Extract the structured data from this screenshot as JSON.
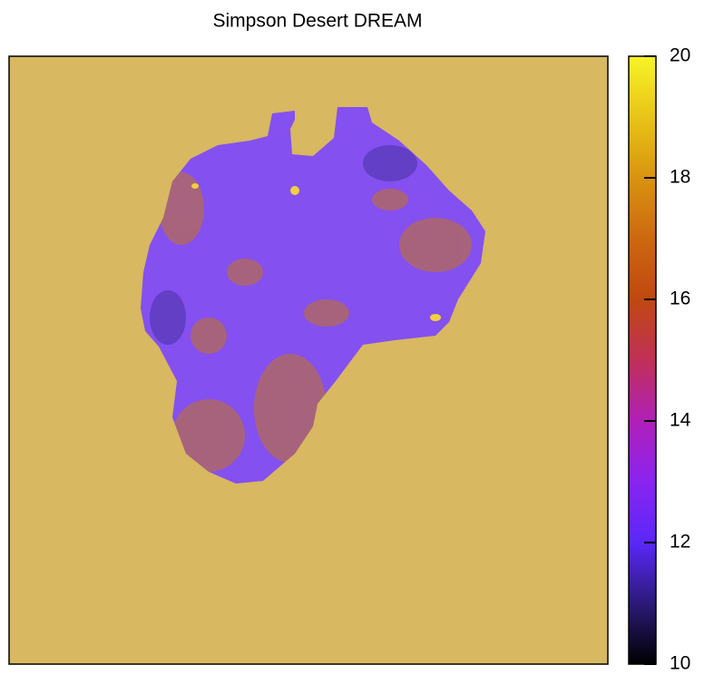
{
  "chart_data": {
    "type": "heatmap",
    "title": "Simpson  Desert DREAM",
    "colorbar_lim": [
      10,
      20
    ],
    "colorbar_ticks": [
      10,
      12,
      14,
      16,
      18,
      20
    ],
    "colormap": [
      "#000000",
      "#2c1a78",
      "#5a28f8",
      "#8a24f0",
      "#b020b8",
      "#c03058",
      "#c04810",
      "#cc6810",
      "#d89410",
      "#e8c418",
      "#f8f428"
    ],
    "background_color": "#d8b860",
    "region_color": "#8450f0"
  }
}
